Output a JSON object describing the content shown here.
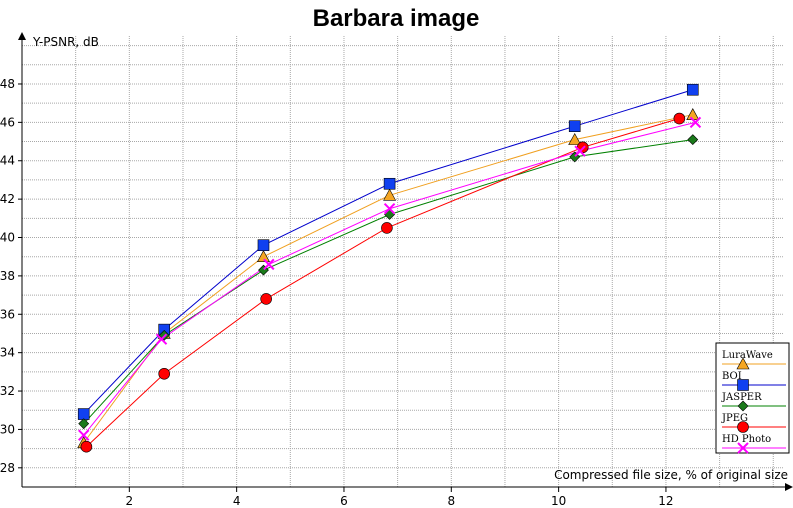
{
  "chart_data": {
    "type": "line",
    "title": "Barbara image",
    "xlabel": "Compressed file size, % of original size",
    "ylabel": "Y-PSNR, dB",
    "xlim": [
      0,
      14.2
    ],
    "ylim": [
      27,
      50.5
    ],
    "xticks": [
      2,
      4,
      6,
      8,
      10,
      12
    ],
    "yticks": [
      28,
      30,
      32,
      34,
      36,
      38,
      40,
      42,
      44,
      46,
      48
    ],
    "grid": true,
    "legend_position": "bottom-right",
    "series": [
      {
        "name": "LuraWave",
        "color": "#f5a623",
        "line_color": "#f0a020",
        "marker": "triangle",
        "points": [
          [
            1.15,
            29.3
          ],
          [
            2.65,
            35.0
          ],
          [
            4.5,
            39.0
          ],
          [
            6.85,
            42.2
          ],
          [
            10.3,
            45.1
          ],
          [
            12.5,
            46.4
          ]
        ]
      },
      {
        "name": "BOI",
        "color": "#1040f0",
        "line_color": "#0000cc",
        "marker": "square",
        "points": [
          [
            1.15,
            30.8
          ],
          [
            2.65,
            35.2
          ],
          [
            4.5,
            39.6
          ],
          [
            6.85,
            42.8
          ],
          [
            10.3,
            45.8
          ],
          [
            12.5,
            47.7
          ]
        ]
      },
      {
        "name": "JASPER",
        "color": "#1a7a1a",
        "line_color": "#008000",
        "marker": "diamond",
        "points": [
          [
            1.15,
            30.3
          ],
          [
            2.65,
            34.9
          ],
          [
            4.5,
            38.3
          ],
          [
            6.85,
            41.2
          ],
          [
            10.3,
            44.2
          ],
          [
            12.5,
            45.1
          ]
        ]
      },
      {
        "name": "JPEG",
        "color": "#ff0000",
        "line_color": "#ff0000",
        "marker": "circle",
        "points": [
          [
            1.2,
            29.1
          ],
          [
            2.65,
            32.9
          ],
          [
            4.55,
            36.8
          ],
          [
            6.8,
            40.5
          ],
          [
            10.45,
            44.7
          ],
          [
            12.25,
            46.2
          ]
        ]
      },
      {
        "name": "HD Photo",
        "color": "#ff00ff",
        "line_color": "#ff00ff",
        "marker": "x",
        "points": [
          [
            1.15,
            29.7
          ],
          [
            2.6,
            34.7
          ],
          [
            4.6,
            38.6
          ],
          [
            6.85,
            41.5
          ],
          [
            10.4,
            44.5
          ],
          [
            12.55,
            46.0
          ]
        ]
      }
    ]
  }
}
